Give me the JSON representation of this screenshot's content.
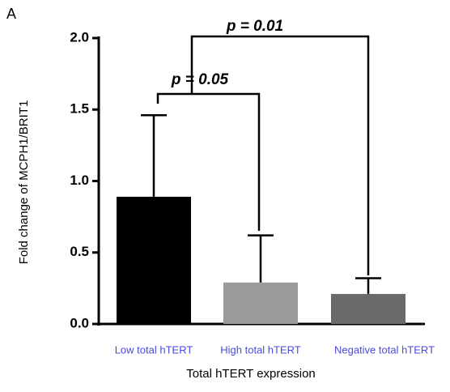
{
  "chart_data": {
    "type": "bar",
    "panel_label": "A",
    "ylabel": "Fold change of MCPH1/BRIT1",
    "xlabel": "Total hTERT expression",
    "categories": [
      "Low total hTERT",
      "High total hTERT",
      "Negative total hTERT"
    ],
    "values": [
      0.89,
      0.29,
      0.21
    ],
    "errors": [
      0.57,
      0.33,
      0.11
    ],
    "colors": [
      "#000000",
      "#9a9a9a",
      "#6a6a6a"
    ],
    "ylim": [
      0,
      2
    ],
    "yticks": [
      {
        "value": 0,
        "label": "0.0"
      },
      {
        "value": 0.5,
        "label": "0.5"
      },
      {
        "value": 1,
        "label": "1.0"
      },
      {
        "value": 1.5,
        "label": "1.5"
      },
      {
        "value": 2,
        "label": "2.0"
      }
    ],
    "annotations": [
      "p = 0.05",
      "p = 0.01"
    ]
  }
}
